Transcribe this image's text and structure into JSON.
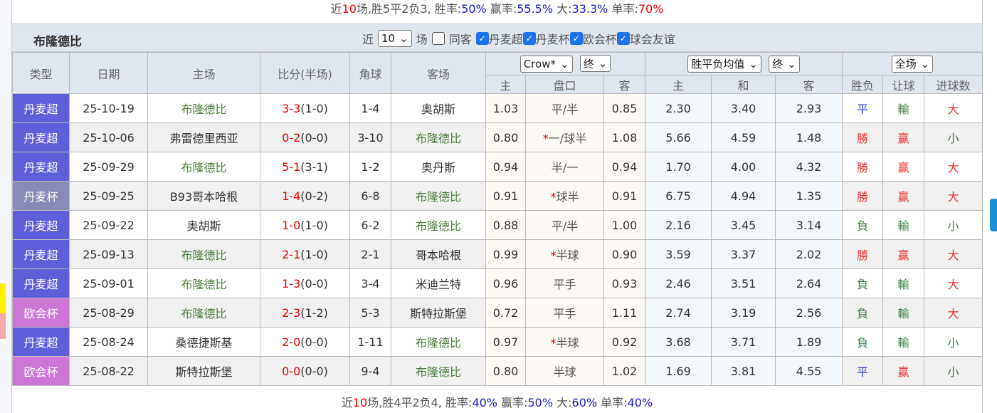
{
  "top_summary": {
    "prefix": "近",
    "n": "10",
    "mid": "场,胜5平2负3, 胜率:",
    "win_rate": "50%",
    "l2": " 赢率:",
    "cover_rate": "55.5%",
    "l3": " 大:",
    "over_rate": "33.3%",
    "l4": " 单率:",
    "odd_rate": "70%"
  },
  "team_title": "布隆德比",
  "filters": {
    "near": "近",
    "count": "10",
    "unit": "场",
    "same": "同客",
    "leagues": [
      "丹麦超",
      "丹麦杯",
      "欧会杯",
      "球会友谊"
    ]
  },
  "headers": {
    "type": "类型",
    "date": "日期",
    "home": "主场",
    "score": "比分(半场)",
    "corner": "角球",
    "away": "客场",
    "company": "Crow*",
    "ah_stage": "终",
    "euro": "胜平负均值",
    "eu_stage": "终",
    "period": "全场",
    "ah_home": "主",
    "ah_line": "盘口",
    "ah_away": "客",
    "eu_home": "主",
    "eu_draw": "和",
    "eu_away": "客",
    "res": "胜负",
    "cover": "让球",
    "ou": "进球数"
  },
  "colors": {
    "丹麦超": "#5f5fdb",
    "丹麦杯": "#8a8ab8",
    "欧会杯": "#cc77d6",
    "team": "#4e7f3e"
  },
  "rows": [
    {
      "league": "丹麦超",
      "date": "25-10-19",
      "home": "布隆德比",
      "score": "3-3",
      "ht": "(1-0)",
      "corner": "1-4",
      "away": "奥胡斯",
      "ah_h": "1.03",
      "star": "",
      "line": "平/半",
      "ah_a": "0.85",
      "eh": "2.30",
      "ed": "3.40",
      "ea": "2.93",
      "res": "平",
      "cov": "輸",
      "ou": "大"
    },
    {
      "league": "丹麦超",
      "date": "25-10-06",
      "home": "弗雷德里西亚",
      "score": "0-2",
      "ht": "(0-0)",
      "corner": "3-10",
      "away": "布隆德比",
      "ah_h": "0.80",
      "star": "*",
      "line": "一/球半",
      "ah_a": "1.08",
      "eh": "5.66",
      "ed": "4.59",
      "ea": "1.48",
      "res": "勝",
      "cov": "贏",
      "ou": "小"
    },
    {
      "league": "丹麦超",
      "date": "25-09-29",
      "home": "布隆德比",
      "score": "5-1",
      "ht": "(3-1)",
      "corner": "1-2",
      "away": "奥丹斯",
      "ah_h": "0.94",
      "star": "",
      "line": "半/一",
      "ah_a": "0.94",
      "eh": "1.70",
      "ed": "4.00",
      "ea": "4.32",
      "res": "勝",
      "cov": "贏",
      "ou": "大"
    },
    {
      "league": "丹麦杯",
      "date": "25-09-25",
      "home": "B93哥本哈根",
      "score": "1-4",
      "ht": "(0-2)",
      "corner": "6-8",
      "away": "布隆德比",
      "ah_h": "0.91",
      "star": "*",
      "line": "球半",
      "ah_a": "0.91",
      "eh": "6.75",
      "ed": "4.94",
      "ea": "1.35",
      "res": "勝",
      "cov": "贏",
      "ou": "大"
    },
    {
      "league": "丹麦超",
      "date": "25-09-22",
      "home": "奥胡斯",
      "score": "1-0",
      "ht": "(1-0)",
      "corner": "6-2",
      "away": "布隆德比",
      "ah_h": "0.88",
      "star": "",
      "line": "平/半",
      "ah_a": "1.00",
      "eh": "2.16",
      "ed": "3.45",
      "ea": "3.14",
      "res": "負",
      "cov": "輸",
      "ou": "小"
    },
    {
      "league": "丹麦超",
      "date": "25-09-13",
      "home": "布隆德比",
      "score": "2-1",
      "ht": "(1-0)",
      "corner": "2-1",
      "away": "哥本哈根",
      "ah_h": "0.99",
      "star": "*",
      "line": "半球",
      "ah_a": "0.90",
      "eh": "3.59",
      "ed": "3.37",
      "ea": "2.02",
      "res": "勝",
      "cov": "贏",
      "ou": "大"
    },
    {
      "league": "丹麦超",
      "date": "25-09-01",
      "home": "布隆德比",
      "score": "1-3",
      "ht": "(0-0)",
      "corner": "3-4",
      "away": "米迪兰特",
      "ah_h": "0.96",
      "star": "",
      "line": "平手",
      "ah_a": "0.93",
      "eh": "2.46",
      "ed": "3.51",
      "ea": "2.64",
      "res": "負",
      "cov": "輸",
      "ou": "大"
    },
    {
      "league": "欧会杯",
      "date": "25-08-29",
      "home": "布隆德比",
      "score": "2-3",
      "ht": "(1-2)",
      "corner": "5-3",
      "away": "斯特拉斯堡",
      "ah_h": "0.72",
      "star": "",
      "line": "平手",
      "ah_a": "1.11",
      "eh": "2.74",
      "ed": "3.19",
      "ea": "2.56",
      "res": "負",
      "cov": "輸",
      "ou": "大"
    },
    {
      "league": "丹麦超",
      "date": "25-08-24",
      "home": "桑德捷斯基",
      "score": "2-0",
      "ht": "(0-0)",
      "corner": "1-11",
      "away": "布隆德比",
      "ah_h": "0.97",
      "star": "*",
      "line": "半球",
      "ah_a": "0.92",
      "eh": "3.68",
      "ed": "3.71",
      "ea": "1.89",
      "res": "負",
      "cov": "輸",
      "ou": "小"
    },
    {
      "league": "欧会杯",
      "date": "25-08-22",
      "home": "斯特拉斯堡",
      "score": "0-0",
      "ht": "(0-0)",
      "corner": "9-4",
      "away": "布隆德比",
      "ah_h": "0.80",
      "star": "",
      "line": "半球",
      "ah_a": "1.02",
      "eh": "1.69",
      "ed": "3.81",
      "ea": "4.55",
      "res": "平",
      "cov": "贏",
      "ou": "小"
    }
  ],
  "bottom_summary": {
    "prefix": "近",
    "n": "10",
    "mid": "场,胜4平2负4, 胜率:",
    "win_rate": "40%",
    "l2": " 赢率:",
    "cover_rate": "50%",
    "l3": " 大:",
    "over_rate": "60%",
    "l4": " 单率:",
    "odd_rate": "40%"
  }
}
